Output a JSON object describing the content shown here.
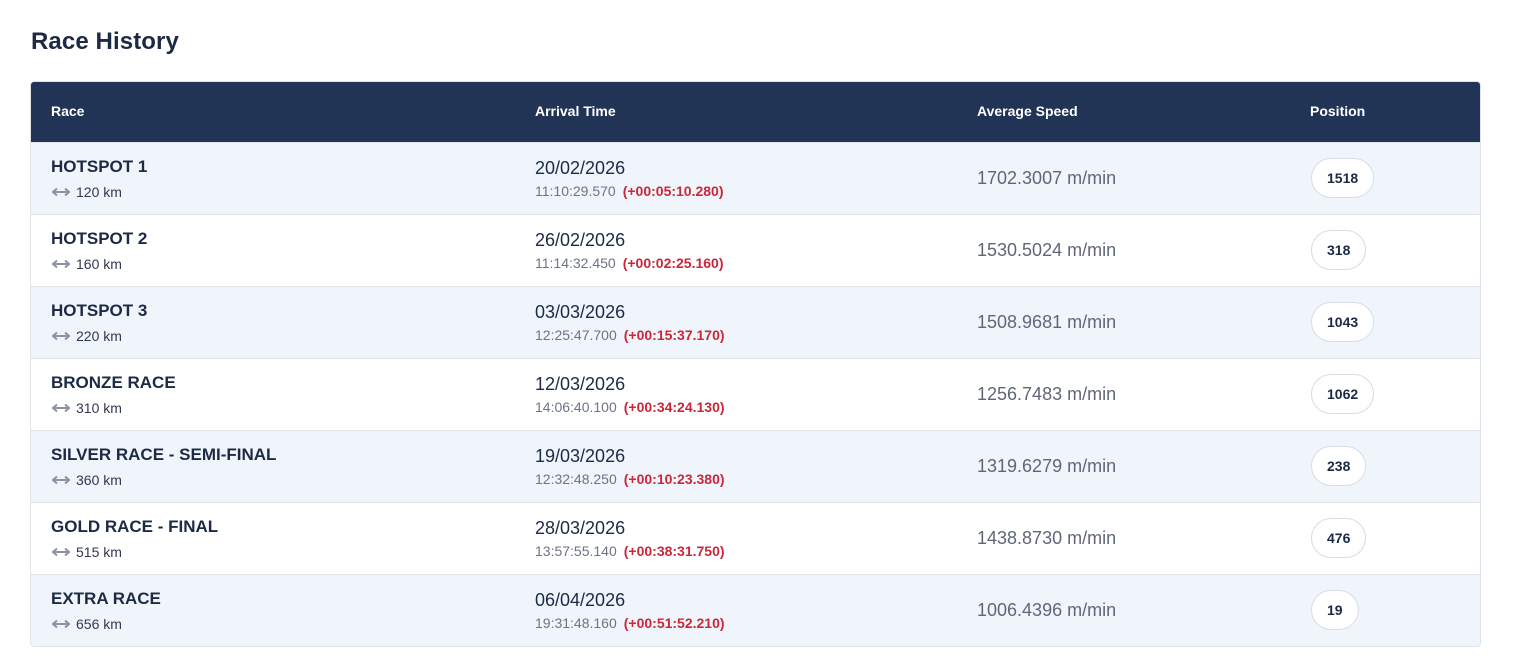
{
  "page": {
    "title": "Race History"
  },
  "table": {
    "headers": [
      "Race",
      "Arrival Time",
      "Average Speed",
      "Position"
    ],
    "rows": [
      {
        "race": "HOTSPOT 1",
        "distance": "120 km",
        "date": "20/02/2026",
        "time": "11:10:29.570",
        "gap": "(+00:05:10.280)",
        "speed": "1702.3007 m/min",
        "position": "1518"
      },
      {
        "race": "HOTSPOT 2",
        "distance": "160 km",
        "date": "26/02/2026",
        "time": "11:14:32.450",
        "gap": "(+00:02:25.160)",
        "speed": "1530.5024 m/min",
        "position": "318"
      },
      {
        "race": "HOTSPOT 3",
        "distance": "220 km",
        "date": "03/03/2026",
        "time": "12:25:47.700",
        "gap": "(+00:15:37.170)",
        "speed": "1508.9681 m/min",
        "position": "1043"
      },
      {
        "race": "BRONZE RACE",
        "distance": "310 km",
        "date": "12/03/2026",
        "time": "14:06:40.100",
        "gap": "(+00:34:24.130)",
        "speed": "1256.7483 m/min",
        "position": "1062"
      },
      {
        "race": "SILVER RACE - SEMI-FINAL",
        "distance": "360 km",
        "date": "19/03/2026",
        "time": "12:32:48.250",
        "gap": "(+00:10:23.380)",
        "speed": "1319.6279 m/min",
        "position": "238"
      },
      {
        "race": "GOLD RACE - FINAL",
        "distance": "515 km",
        "date": "28/03/2026",
        "time": "13:57:55.140",
        "gap": "(+00:38:31.750)",
        "speed": "1438.8730 m/min",
        "position": "476"
      },
      {
        "race": "EXTRA RACE",
        "distance": "656 km",
        "date": "06/04/2026",
        "time": "19:31:48.160",
        "gap": "(+00:51:52.210)",
        "speed": "1006.4396 m/min",
        "position": "19"
      }
    ]
  },
  "icons": {
    "distance": "double-arrow-icon"
  },
  "colors": {
    "header_bg": "#213455",
    "gap_red": "#c8283a",
    "row_alt": "#f0f5fc"
  }
}
